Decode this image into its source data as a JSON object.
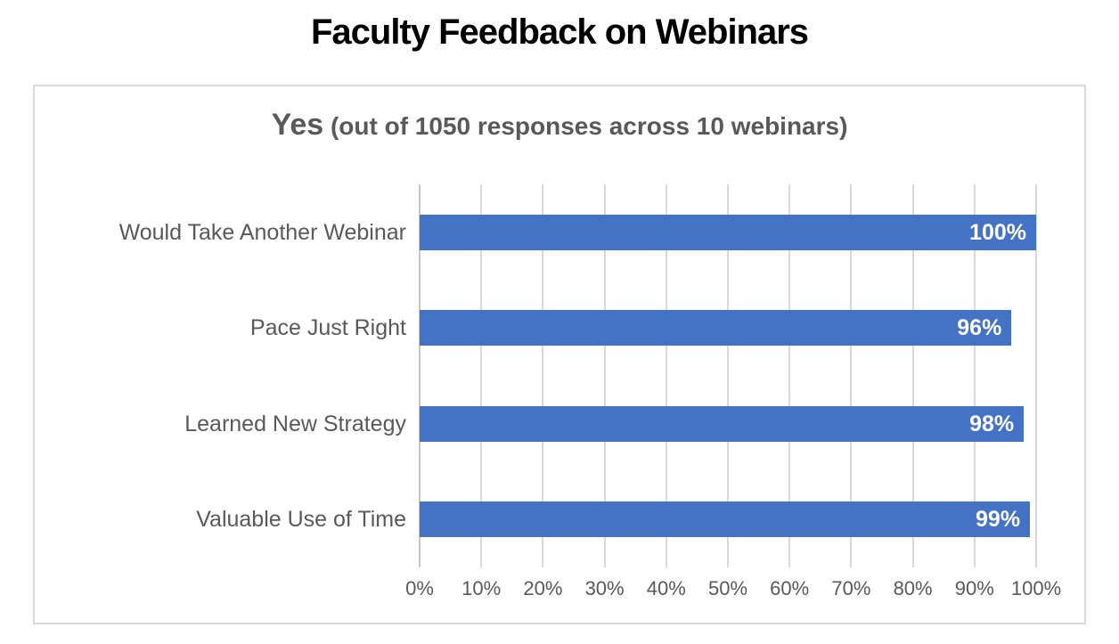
{
  "page": {
    "title": "Faculty Feedback on Webinars"
  },
  "chart": {
    "subtitle_emphasis": "Yes",
    "subtitle_rest": " (out of 1050 responses across 10 webinars)"
  },
  "chart_data": {
    "type": "bar",
    "orientation": "horizontal",
    "title": "Faculty Feedback on Webinars",
    "subtitle": "Yes (out of 1050 responses across 10 webinars)",
    "categories": [
      "Would Take Another Webinar",
      "Pace Just Right",
      "Learned New Strategy",
      "Valuable Use of Time"
    ],
    "values": [
      100,
      96,
      98,
      99
    ],
    "value_labels": [
      "100%",
      "96%",
      "98%",
      "99%"
    ],
    "x_ticks": [
      "0%",
      "10%",
      "20%",
      "30%",
      "40%",
      "50%",
      "60%",
      "70%",
      "80%",
      "90%",
      "100%"
    ],
    "xlim": [
      0,
      100
    ],
    "xlabel": "",
    "ylabel": "",
    "grid": "vertical",
    "legend": "none",
    "bar_color": "#4472C4",
    "bar_label_color": "#FFFFFF",
    "bar_label_position": "inside-end"
  }
}
